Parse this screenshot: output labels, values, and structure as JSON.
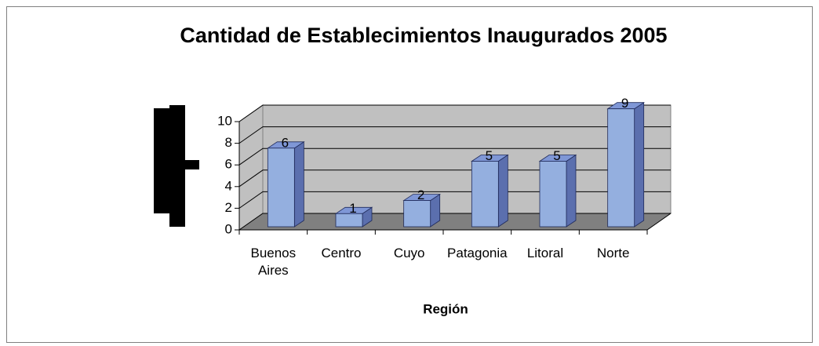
{
  "chart_data": {
    "type": "bar",
    "title": "Cantidad de Establecimientos Inaugurados 2005",
    "xlabel": "Región",
    "categories": [
      "Buenos Aires",
      "Centro",
      "Cuyo",
      "Patagonia",
      "Litoral",
      "Norte"
    ],
    "values": [
      6,
      1,
      2,
      5,
      5,
      9
    ],
    "color": "#94afdf",
    "ylim": [
      0,
      10
    ],
    "yticks": [
      0,
      2,
      4,
      6,
      8,
      10
    ],
    "grid": true
  }
}
